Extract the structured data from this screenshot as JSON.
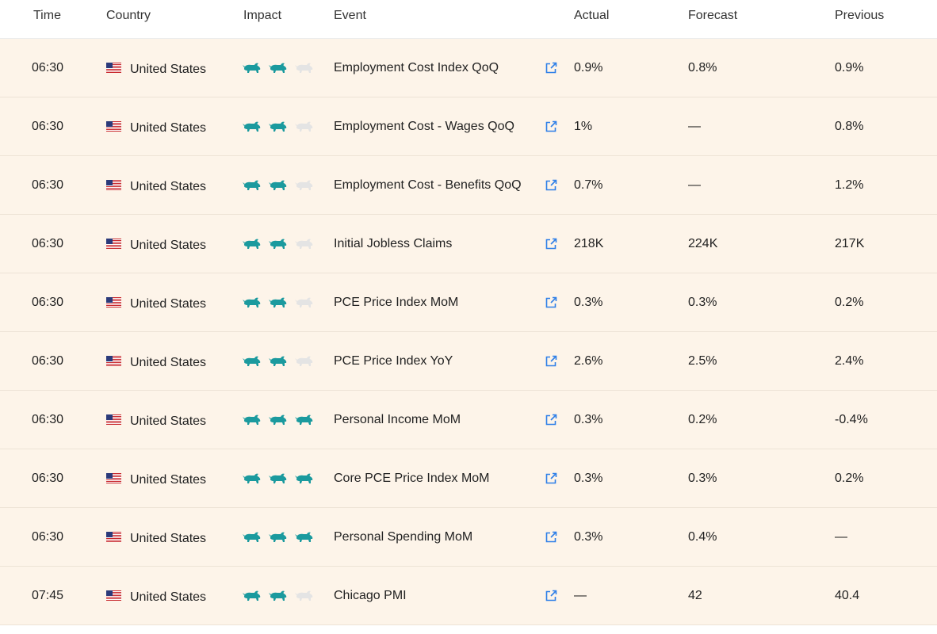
{
  "columns": {
    "time": "Time",
    "country": "Country",
    "impact": "Impact",
    "event": "Event",
    "actual": "Actual",
    "forecast": "Forecast",
    "previous": "Previous"
  },
  "colors": {
    "row_background": "#fdf4e9",
    "impact_active": "#1b9a9e",
    "impact_inactive": "#e4e4e4",
    "link": "#2e7fe8"
  },
  "rows": [
    {
      "time": "06:30",
      "country": "United States",
      "flag_icon": "us-flag-icon",
      "impact": 2,
      "event": "Employment Cost Index QoQ",
      "actual": "0.9%",
      "forecast": "0.8%",
      "previous": "0.9%"
    },
    {
      "time": "06:30",
      "country": "United States",
      "flag_icon": "us-flag-icon",
      "impact": 2,
      "event": "Employment Cost - Wages QoQ",
      "actual": "1%",
      "forecast": "—",
      "previous": "0.8%"
    },
    {
      "time": "06:30",
      "country": "United States",
      "flag_icon": "us-flag-icon",
      "impact": 2,
      "event": "Employment Cost - Benefits QoQ",
      "actual": "0.7%",
      "forecast": "—",
      "previous": "1.2%"
    },
    {
      "time": "06:30",
      "country": "United States",
      "flag_icon": "us-flag-icon",
      "impact": 2,
      "event": "Initial Jobless Claims",
      "actual": "218K",
      "forecast": "224K",
      "previous": "217K"
    },
    {
      "time": "06:30",
      "country": "United States",
      "flag_icon": "us-flag-icon",
      "impact": 2,
      "event": "PCE Price Index MoM",
      "actual": "0.3%",
      "forecast": "0.3%",
      "previous": "0.2%"
    },
    {
      "time": "06:30",
      "country": "United States",
      "flag_icon": "us-flag-icon",
      "impact": 2,
      "event": "PCE Price Index YoY",
      "actual": "2.6%",
      "forecast": "2.5%",
      "previous": "2.4%"
    },
    {
      "time": "06:30",
      "country": "United States",
      "flag_icon": "us-flag-icon",
      "impact": 3,
      "event": "Personal Income MoM",
      "actual": "0.3%",
      "forecast": "0.2%",
      "previous": "-0.4%"
    },
    {
      "time": "06:30",
      "country": "United States",
      "flag_icon": "us-flag-icon",
      "impact": 3,
      "event": "Core PCE Price Index MoM",
      "actual": "0.3%",
      "forecast": "0.3%",
      "previous": "0.2%"
    },
    {
      "time": "06:30",
      "country": "United States",
      "flag_icon": "us-flag-icon",
      "impact": 3,
      "event": "Personal Spending MoM",
      "actual": "0.3%",
      "forecast": "0.4%",
      "previous": "—"
    },
    {
      "time": "07:45",
      "country": "United States",
      "flag_icon": "us-flag-icon",
      "impact": 2,
      "event": "Chicago PMI",
      "actual": "—",
      "forecast": "42",
      "previous": "40.4"
    }
  ]
}
